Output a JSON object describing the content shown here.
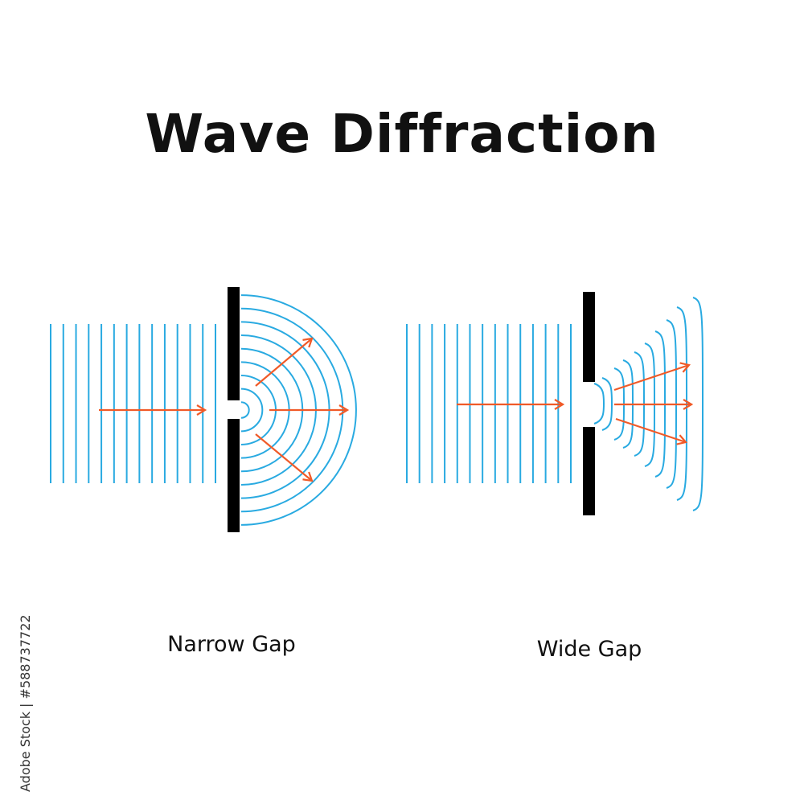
{
  "title": "Wave Diffraction",
  "panels": [
    {
      "label": "Narrow Gap"
    },
    {
      "label": "Wide Gap"
    }
  ],
  "watermark_id": "Adobe Stock | #588737722",
  "colors": {
    "wave": "#29aae1",
    "arrow": "#f05a28",
    "barrier": "#000000",
    "text": "#111111"
  }
}
